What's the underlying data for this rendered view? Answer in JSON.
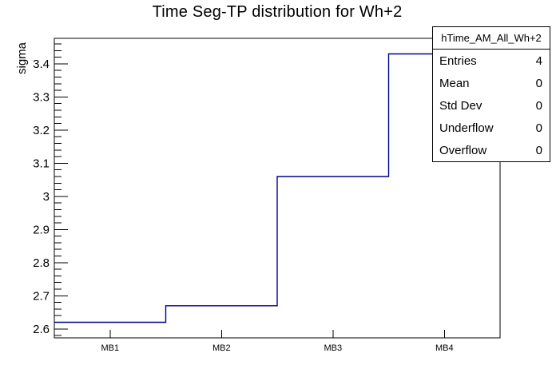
{
  "title": "Time Seg-TP distribution for Wh+2",
  "y_axis_title": "sigma",
  "stats_box": {
    "title": "hTime_AM_All_Wh+2",
    "rows": [
      {
        "label": "Entries",
        "value": "4"
      },
      {
        "label": "Mean",
        "value": "0"
      },
      {
        "label": "Std Dev",
        "value": "0"
      },
      {
        "label": "Underflow",
        "value": "0"
      },
      {
        "label": "Overflow",
        "value": "0"
      }
    ]
  },
  "chart_data": {
    "type": "step-histogram",
    "title": "Time Seg-TP distribution for Wh+2",
    "xlabel": "",
    "ylabel": "sigma",
    "categories": [
      "MB1",
      "MB2",
      "MB3",
      "MB4"
    ],
    "values": [
      2.62,
      2.67,
      3.06,
      3.43
    ],
    "ylim": [
      2.573,
      3.477
    ],
    "y_major_ticks": [
      2.6,
      2.7,
      2.8,
      2.9,
      3,
      3.1,
      3.2,
      3.3,
      3.4
    ],
    "y_tick_labels": [
      "2.6",
      "2.7",
      "2.8",
      "2.9",
      "3",
      "3.1",
      "3.2",
      "3.3",
      "3.4"
    ],
    "y_minor_step": 0.02,
    "grid": false,
    "legend": "none",
    "line_color": "#00008b",
    "frame_color": "#000000",
    "background": "#ffffff"
  }
}
